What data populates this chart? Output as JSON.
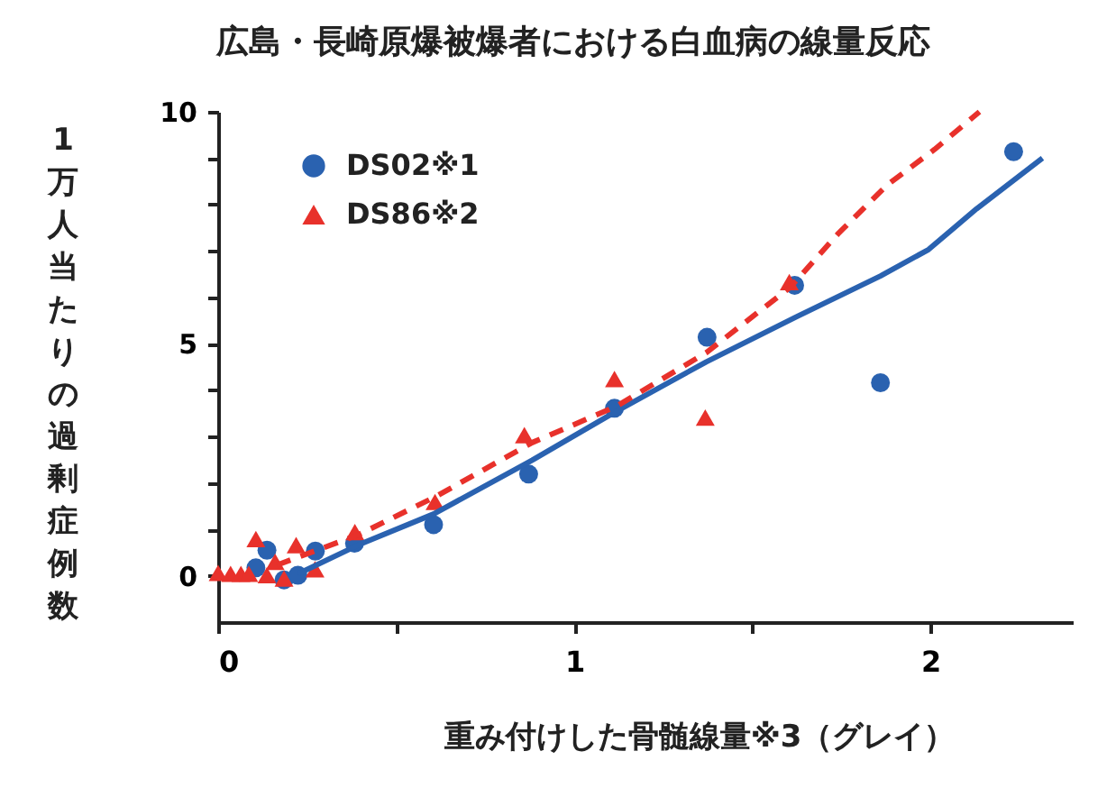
{
  "chart_data": {
    "type": "scatter",
    "title": "広島・長崎原爆被爆者における白血病の線量反応",
    "xlabel": "重み付けした骨髄線量※3（グレイ）",
    "ylabel": "1万人当たりの過剰症例数",
    "xlim": [
      0,
      2.4
    ],
    "ylim": [
      -1,
      10
    ],
    "xticks": [
      0,
      {
        "value": 0.5,
        "label": null
      },
      1,
      {
        "value": 1.5,
        "label": null
      },
      2
    ],
    "yticks": [
      0,
      {
        "value": 1,
        "label": null
      },
      {
        "value": 2,
        "label": null
      },
      {
        "value": 3,
        "label": null
      },
      {
        "value": 4,
        "label": null
      },
      5,
      {
        "value": 6,
        "label": null
      },
      {
        "value": 7,
        "label": null
      },
      {
        "value": 8,
        "label": null
      },
      {
        "value": 9,
        "label": null
      },
      10
    ],
    "grid": false,
    "legend": "top left",
    "series": [
      {
        "name": "DS02※1",
        "marker": "circle",
        "color": "#2a62b0",
        "x": [
          0.106,
          0.137,
          0.185,
          0.224,
          0.273,
          0.383,
          0.605,
          0.872,
          1.113,
          1.373,
          1.619,
          1.86,
          2.234
        ],
        "values": [
          0.17,
          0.55,
          -0.09,
          0.01,
          0.53,
          0.7,
          1.1,
          2.19,
          3.61,
          5.14,
          6.26,
          4.16,
          9.14
        ]
      },
      {
        "name": "DS86※2",
        "marker": "triangle",
        "color": "#e8312b",
        "x": [
          0.0,
          0.035,
          0.064,
          0.086,
          0.106,
          0.137,
          0.16,
          0.185,
          0.219,
          0.272,
          0.384,
          0.609,
          0.86,
          1.113,
          1.368,
          1.604
        ],
        "values": [
          0.06,
          0.04,
          0.04,
          0.04,
          0.79,
          0.01,
          0.3,
          -0.06,
          0.66,
          0.14,
          0.94,
          1.59,
          3.03,
          4.24,
          3.41,
          6.33
        ]
      },
      {
        "type": "line",
        "line_style": "solid",
        "color": "#2a62b0",
        "x": [
          0.224,
          0.393,
          0.605,
          0.882,
          1.113,
          1.371,
          1.624,
          1.86,
          1.995,
          2.13,
          2.315
        ],
        "values": [
          0.04,
          0.66,
          1.33,
          2.49,
          3.52,
          4.61,
          5.58,
          6.46,
          7.03,
          7.91,
          9.0
        ]
      },
      {
        "type": "line",
        "line_style": "dashed",
        "color": "#e8312b",
        "x": [
          0.165,
          0.393,
          0.612,
          0.882,
          1.118,
          1.371,
          1.607,
          1.742,
          1.877,
          2.012,
          2.138
        ],
        "values": [
          0.23,
          0.88,
          1.71,
          2.87,
          3.65,
          4.81,
          6.22,
          7.38,
          8.41,
          9.19,
          10.0
        ]
      }
    ]
  }
}
